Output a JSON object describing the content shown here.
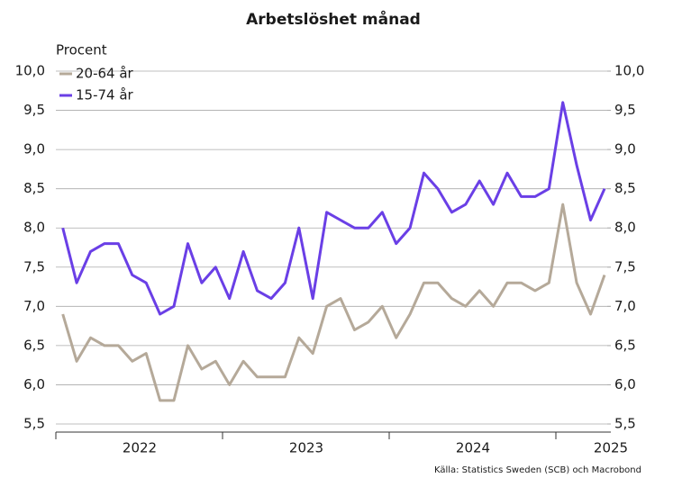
{
  "chart_data": {
    "type": "line",
    "title": "Arbetslöshet månad",
    "ylabel": "Procent",
    "source": "Källa: Statistics Sweden (SCB) och Macrobond",
    "categories": [
      null,
      null,
      null,
      null,
      null,
      null,
      null,
      null,
      null,
      null,
      null,
      null,
      null,
      null,
      null,
      null,
      null,
      null,
      null,
      null,
      null,
      null,
      null,
      null,
      null,
      null,
      null,
      null,
      null,
      null,
      null,
      null,
      null,
      null,
      null,
      null,
      null,
      null,
      null,
      null
    ],
    "x_labels": [
      "2022",
      "2023",
      "2024",
      "2025"
    ],
    "series": [
      {
        "name": "20-64 år",
        "color": "#b5a999",
        "values": [
          6.9,
          6.3,
          6.6,
          6.5,
          6.5,
          6.3,
          6.4,
          5.8,
          5.8,
          6.5,
          6.2,
          6.3,
          6.0,
          6.3,
          6.1,
          6.1,
          6.1,
          6.6,
          6.4,
          7.0,
          7.1,
          6.7,
          6.8,
          7.0,
          6.6,
          6.9,
          7.3,
          7.3,
          7.1,
          7.0,
          7.2,
          7.0,
          7.3,
          7.3,
          7.2,
          7.3,
          8.3,
          7.3,
          6.9,
          7.4
        ]
      },
      {
        "name": "15-74 år",
        "color": "#6a3fe6",
        "values": [
          8.0,
          7.3,
          7.7,
          7.8,
          7.8,
          7.4,
          7.3,
          6.9,
          7.0,
          7.8,
          7.3,
          7.5,
          7.1,
          7.7,
          7.2,
          7.1,
          7.3,
          8.0,
          7.1,
          8.2,
          8.1,
          8.0,
          8.0,
          8.2,
          7.8,
          8.0,
          8.7,
          8.5,
          8.2,
          8.3,
          8.6,
          8.3,
          8.7,
          8.4,
          8.4,
          8.5,
          9.6,
          8.8,
          8.1,
          8.5
        ]
      }
    ],
    "ylim": [
      5.5,
      10.0
    ],
    "yticks": [
      {
        "value": 5.5,
        "label": "5,5"
      },
      {
        "value": 6.0,
        "label": "6,0"
      },
      {
        "value": 6.5,
        "label": "6,5"
      },
      {
        "value": 7.0,
        "label": "7,0"
      },
      {
        "value": 7.5,
        "label": "7,5"
      },
      {
        "value": 8.0,
        "label": "8,0"
      },
      {
        "value": 8.5,
        "label": "8,5"
      },
      {
        "value": 9.0,
        "label": "9,0"
      },
      {
        "value": 9.5,
        "label": "9,5"
      },
      {
        "value": 10.0,
        "label": "10,0"
      }
    ],
    "y2lim": [
      5.5,
      10.0
    ],
    "y2ticks": [
      {
        "value": 5.5,
        "label": "5,5"
      },
      {
        "value": 6.0,
        "label": "6,0"
      },
      {
        "value": 6.5,
        "label": "6,5"
      },
      {
        "value": 7.0,
        "label": "7,0"
      },
      {
        "value": 7.5,
        "label": "7,5"
      },
      {
        "value": 8.0,
        "label": "8,0"
      },
      {
        "value": 8.5,
        "label": "8,5"
      },
      {
        "value": 9.0,
        "label": "9,0"
      },
      {
        "value": 9.5,
        "label": "9,5"
      },
      {
        "value": 10.0,
        "label": "10,0"
      }
    ],
    "grid": true,
    "legend": "upper left"
  }
}
